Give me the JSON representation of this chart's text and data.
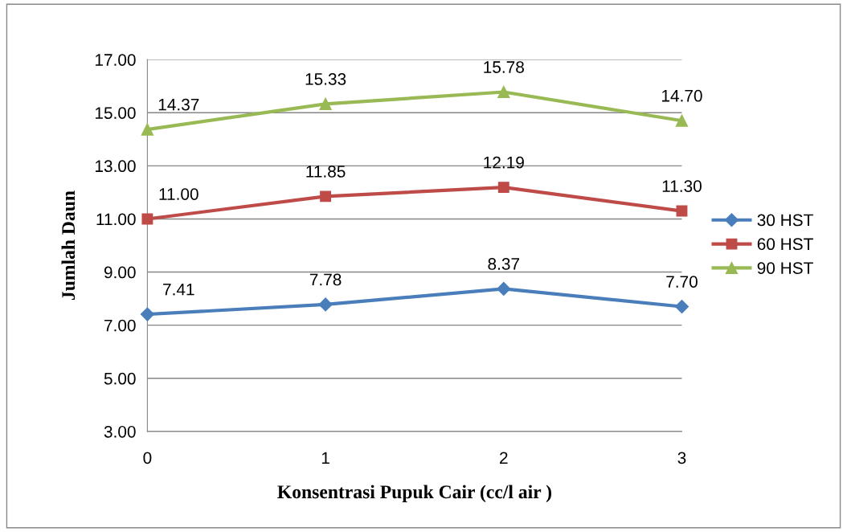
{
  "chart_data": {
    "type": "line",
    "xlabel": "Konsentrasi Pupuk Cair (cc/l air )",
    "ylabel": "Jumlah Daun",
    "categories": [
      "0",
      "1",
      "2",
      "3"
    ],
    "series": [
      {
        "name": "30 HST",
        "color": "#4a7ebb",
        "marker": "diamond",
        "values": [
          7.41,
          7.78,
          8.37,
          7.7
        ],
        "value_labels": [
          "7.41",
          "7.78",
          "8.37",
          "7.70"
        ]
      },
      {
        "name": "60 HST",
        "color": "#be4b48",
        "marker": "square",
        "values": [
          11.0,
          11.85,
          12.19,
          11.3
        ],
        "value_labels": [
          "11.00",
          "11.85",
          "12.19",
          "11.30"
        ]
      },
      {
        "name": "90 HST",
        "color": "#98b954",
        "marker": "triangle",
        "values": [
          14.37,
          15.33,
          15.78,
          14.7
        ],
        "value_labels": [
          "14.37",
          "15.33",
          "15.78",
          "14.70"
        ]
      }
    ],
    "ylim": [
      3,
      17
    ],
    "yticks": [
      {
        "value": 3,
        "label": "3.00"
      },
      {
        "value": 5,
        "label": "5.00"
      },
      {
        "value": 7,
        "label": "7.00"
      },
      {
        "value": 9,
        "label": "9.00"
      },
      {
        "value": 11,
        "label": "11.00"
      },
      {
        "value": 13,
        "label": "13.00"
      },
      {
        "value": 15,
        "label": "15.00"
      },
      {
        "value": 17,
        "label": "17.00"
      }
    ],
    "grid": "y",
    "legend": "right",
    "line_style": "solid"
  }
}
